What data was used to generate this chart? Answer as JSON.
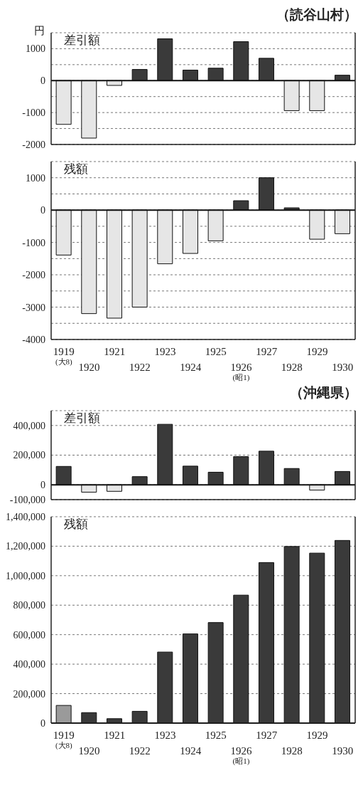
{
  "chart_data": [
    {
      "type": "bar",
      "title": "差引額",
      "subtitle": "（読谷山村）",
      "ylabel": "円",
      "grid": "y",
      "categories": [
        null,
        null,
        null,
        null,
        null,
        null,
        null,
        null,
        null,
        null,
        null,
        null
      ],
      "values": [
        -1370,
        -1800,
        -150,
        350,
        1310,
        330,
        390,
        1220,
        700,
        -940,
        -940,
        170
      ],
      "colors": [
        "#e6e6e6",
        "#e6e6e6",
        "#e6e6e6",
        "#3a3a3a",
        "#3a3a3a",
        "#3a3a3a",
        "#3a3a3a",
        "#3a3a3a",
        "#3a3a3a",
        "#e6e6e6",
        "#e6e6e6",
        "#3a3a3a"
      ],
      "ylim": [
        -2000,
        1500
      ],
      "yticks": [
        -2000,
        {
          "value": -1500,
          "label": null
        },
        -1000,
        {
          "value": -500,
          "label": null
        },
        0,
        {
          "value": 500,
          "label": null
        },
        1000,
        {
          "value": 1500,
          "label": null
        }
      ]
    },
    {
      "type": "bar",
      "title": "残額",
      "grid": "y",
      "categories": [
        "1919$_{(大8)}$",
        "1920",
        "1921",
        "1922",
        "1923",
        "1924",
        "1925",
        "1926$_{(昭1)}$",
        "1927",
        "1928",
        "1929",
        "1930"
      ],
      "values": [
        -1390,
        -3200,
        -3340,
        -3000,
        -1660,
        -1340,
        -950,
        290,
        1000,
        70,
        -900,
        -730
      ],
      "colors": [
        "#e6e6e6",
        "#e6e6e6",
        "#e6e6e6",
        "#e6e6e6",
        "#e6e6e6",
        "#e6e6e6",
        "#e6e6e6",
        "#3a3a3a",
        "#3a3a3a",
        "#3a3a3a",
        "#e6e6e6",
        "#e6e6e6"
      ],
      "ylim": [
        -4000,
        1500
      ],
      "yticks": [
        -4000,
        {
          "value": -3500,
          "label": null
        },
        -3000,
        {
          "value": -2500,
          "label": null
        },
        -2000,
        {
          "value": -1500,
          "label": null
        },
        -1000,
        {
          "value": -500,
          "label": null
        },
        0,
        {
          "value": 500,
          "label": null
        },
        1000,
        {
          "value": 1500,
          "label": null
        }
      ]
    },
    {
      "type": "bar",
      "title": "差引額",
      "subtitle": "（沖縄県）",
      "grid": "y",
      "categories": [
        null,
        null,
        null,
        null,
        null,
        null,
        null,
        null,
        null,
        null,
        null,
        null
      ],
      "values": [
        124000,
        -50000,
        -44000,
        55000,
        408000,
        126000,
        85000,
        190000,
        227000,
        110000,
        -36000,
        90000
      ],
      "colors": [
        "#3a3a3a",
        "#e6e6e6",
        "#e6e6e6",
        "#3a3a3a",
        "#3a3a3a",
        "#3a3a3a",
        "#3a3a3a",
        "#3a3a3a",
        "#3a3a3a",
        "#3a3a3a",
        "#e6e6e6",
        "#3a3a3a"
      ],
      "ylim": [
        -100000,
        500000
      ],
      "yticks": [
        {
          "value": -100000,
          "label": "-100,000"
        },
        {
          "value": 0,
          "label": "0"
        },
        {
          "value": 200000,
          "label": "200,000"
        },
        {
          "value": 400000,
          "label": "400,000"
        }
      ]
    },
    {
      "type": "bar",
      "title": "残額",
      "grid": "y",
      "categories": [
        "1919$_{(大8)}$",
        "1920",
        "1921",
        "1922",
        "1923",
        "1924",
        "1925",
        "1926$_{(昭1)}$",
        "1927",
        "1928",
        "1929",
        "1930"
      ],
      "values": [
        120000,
        71000,
        30000,
        80000,
        482000,
        605000,
        682000,
        868000,
        1089000,
        1198000,
        1153000,
        1239000
      ],
      "colors": [
        "#9a9a9a",
        "#3a3a3a",
        "#3a3a3a",
        "#3a3a3a",
        "#3a3a3a",
        "#3a3a3a",
        "#3a3a3a",
        "#3a3a3a",
        "#3a3a3a",
        "#3a3a3a",
        "#3a3a3a",
        "#3a3a3a"
      ],
      "ylim": [
        0,
        1400000
      ],
      "yticks": [
        {
          "value": 0,
          "label": "0"
        },
        {
          "value": 200000,
          "label": "200,000"
        },
        {
          "value": 400000,
          "label": "400,000"
        },
        {
          "value": 600000,
          "label": "600,000"
        },
        {
          "value": 800000,
          "label": "800,000"
        },
        {
          "value": 1000000,
          "label": "1,000,000"
        },
        {
          "value": 1200000,
          "label": "1,200,000"
        },
        {
          "value": 1400000,
          "label": "1,400,000"
        }
      ]
    }
  ]
}
